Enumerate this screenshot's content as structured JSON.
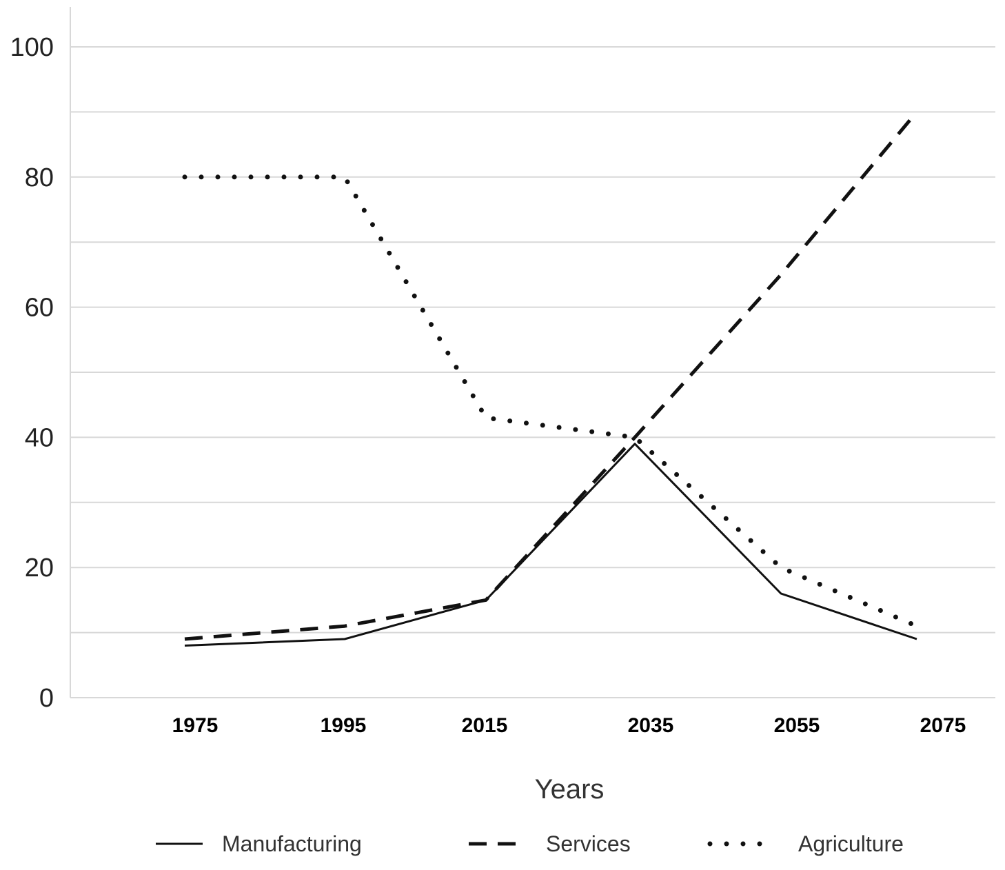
{
  "chart_data": {
    "type": "line",
    "x": [
      1975,
      1995,
      2015,
      2035,
      2055,
      2075
    ],
    "x_tick_labels": [
      "1975",
      "1995",
      "2015",
      "2035",
      "2055",
      "2075"
    ],
    "xlabel": "Years",
    "ylabel": "",
    "title": "",
    "ylim": [
      0,
      100
    ],
    "y_ticks": [
      0,
      20,
      40,
      60,
      80,
      100
    ],
    "y_tick_labels": [
      "0",
      "20",
      "40",
      "60",
      "80",
      "100"
    ],
    "grid": true,
    "legend_position": "bottom",
    "series": [
      {
        "name": "Manufacturing",
        "style": "solid",
        "values": [
          8,
          9,
          15,
          39,
          16,
          9
        ]
      },
      {
        "name": "Services",
        "style": "dashed",
        "values": [
          9,
          11,
          15,
          40,
          65,
          90
        ]
      },
      {
        "name": "Agriculture",
        "style": "dotted",
        "values": [
          80,
          80,
          43,
          40,
          20,
          11
        ]
      }
    ],
    "colors": {
      "line": "#111111",
      "grid": "#d8d8d8"
    }
  }
}
